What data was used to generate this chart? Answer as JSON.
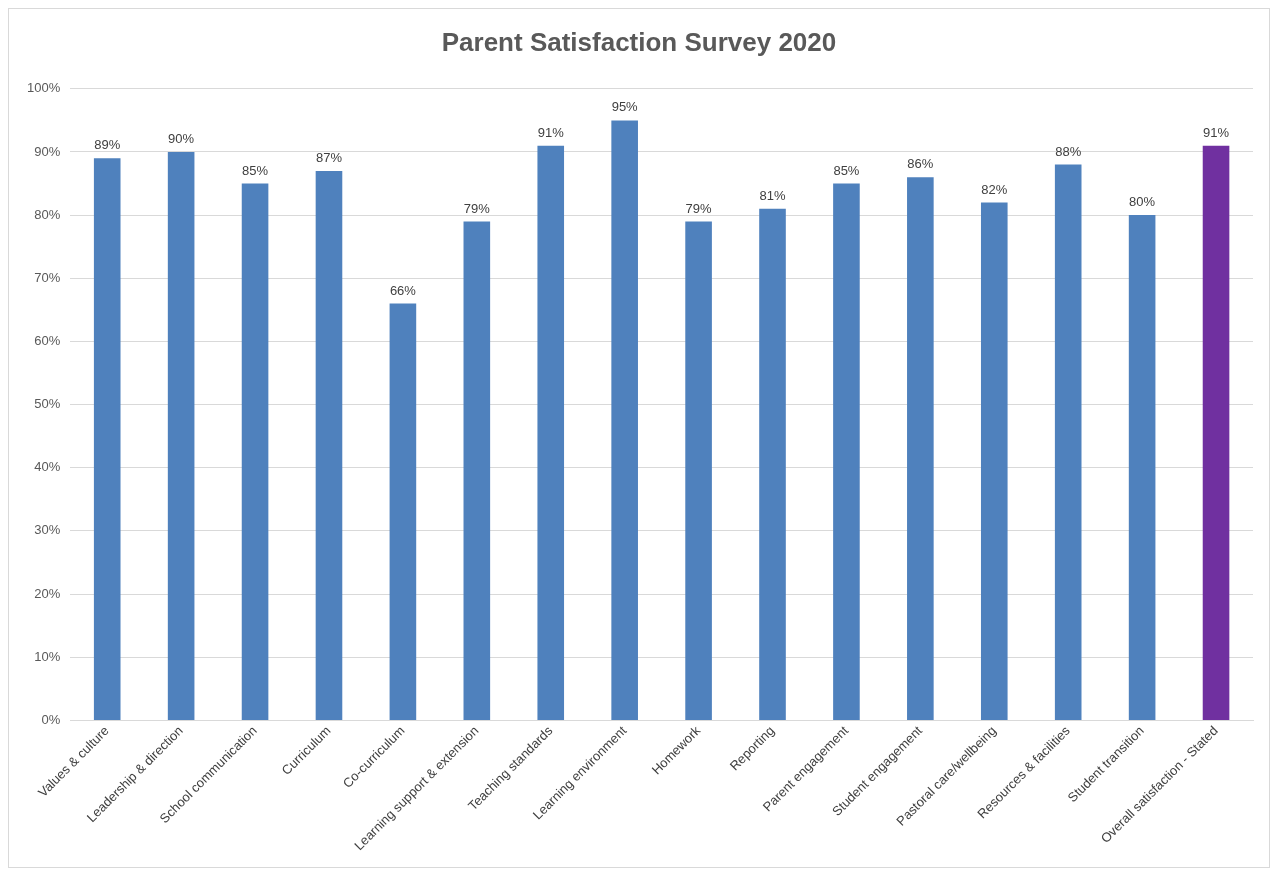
{
  "chart_data": {
    "type": "bar",
    "title": "Parent Satisfaction Survey 2020",
    "categories": [
      "Values & culture",
      "Leadership & direction",
      "School communication",
      "Curriculum",
      "Co-curriculum",
      "Learning support & extension",
      "Teaching standards",
      "Learning environment",
      "Homework",
      "Reporting",
      "Parent engagement",
      "Student engagement",
      "Pastoral care/wellbeing",
      "Resources & facilities",
      "Student transition",
      "Overall satisfaction - Stated"
    ],
    "values": [
      89,
      90,
      85,
      87,
      66,
      79,
      91,
      95,
      79,
      81,
      85,
      86,
      82,
      88,
      80,
      91
    ],
    "colors": [
      "#4f81bd",
      "#4f81bd",
      "#4f81bd",
      "#4f81bd",
      "#4f81bd",
      "#4f81bd",
      "#4f81bd",
      "#4f81bd",
      "#4f81bd",
      "#4f81bd",
      "#4f81bd",
      "#4f81bd",
      "#4f81bd",
      "#4f81bd",
      "#4f81bd",
      "#7030a0"
    ],
    "value_labels": [
      "89%",
      "90%",
      "85%",
      "87%",
      "66%",
      "79%",
      "91%",
      "95%",
      "79%",
      "81%",
      "85%",
      "86%",
      "82%",
      "88%",
      "80%",
      "91%"
    ],
    "ylim": [
      0,
      100
    ],
    "yticks": [
      {
        "value": 0,
        "label": "0%"
      },
      {
        "value": 10,
        "label": "10%"
      },
      {
        "value": 20,
        "label": "20%"
      },
      {
        "value": 30,
        "label": "30%"
      },
      {
        "value": 40,
        "label": "40%"
      },
      {
        "value": 50,
        "label": "50%"
      },
      {
        "value": 60,
        "label": "60%"
      },
      {
        "value": 70,
        "label": "70%"
      },
      {
        "value": 80,
        "label": "80%"
      },
      {
        "value": 90,
        "label": "90%"
      },
      {
        "value": 100,
        "label": "100%"
      }
    ],
    "grid": "y",
    "legend": false
  }
}
